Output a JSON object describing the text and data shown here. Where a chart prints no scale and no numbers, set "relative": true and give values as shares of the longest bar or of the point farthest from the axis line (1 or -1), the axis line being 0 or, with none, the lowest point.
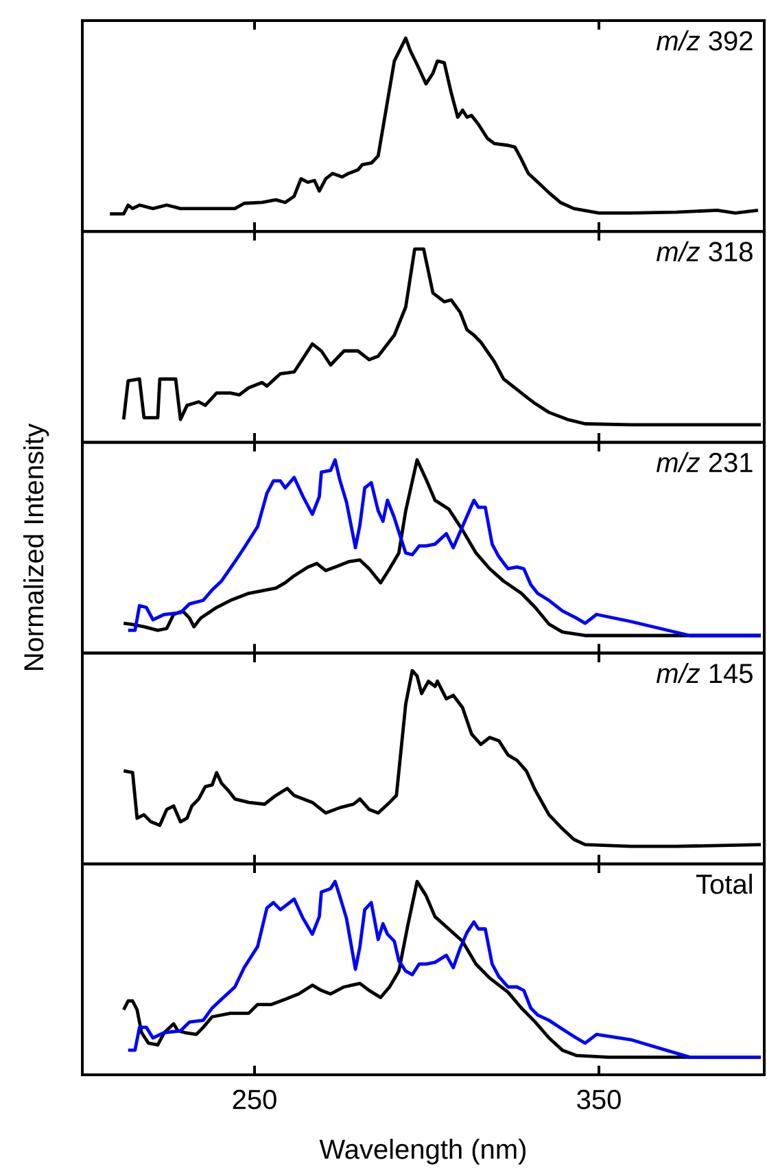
{
  "chart_data": [
    {
      "type": "line",
      "relative": true,
      "xlim": [
        200,
        398
      ],
      "xticks": [
        250,
        350
      ],
      "tick_labels": false,
      "annotations": [
        "*m/z* 392"
      ],
      "series": [
        {
          "color": "#000000",
          "x": [
            208,
            212,
            213.3,
            214.6,
            216.6,
            220.5,
            224.5,
            228.5,
            235.1,
            244.3,
            247,
            252.2,
            256.2,
            258.9,
            261.5,
            263.5,
            265.5,
            267.4,
            268.8,
            270.7,
            272.7,
            275.4,
            277.3,
            280,
            281.3,
            284,
            285.9,
            287.9,
            290.6,
            293.9,
            295.2,
            297.2,
            299.8,
            301.8,
            303.1,
            305.1,
            307.1,
            309,
            310.4,
            311.7,
            313,
            315,
            317.6,
            319.6,
            323.6,
            325.6,
            327.5,
            329.5,
            332.8,
            335.5,
            338.8,
            342.7,
            350,
            359.2,
            372.5,
            384.3,
            389.6,
            396.2
          ],
          "values": [
            0,
            0,
            0.05,
            0.03,
            0.05,
            0.03,
            0.05,
            0.03,
            0.03,
            0.03,
            0.06,
            0.065,
            0.08,
            0.065,
            0.1,
            0.2,
            0.18,
            0.19,
            0.13,
            0.2,
            0.23,
            0.21,
            0.23,
            0.25,
            0.28,
            0.29,
            0.33,
            0.56,
            0.87,
            1,
            0.93,
            0.85,
            0.74,
            0.8,
            0.87,
            0.86,
            0.69,
            0.55,
            0.59,
            0.55,
            0.56,
            0.51,
            0.43,
            0.4,
            0.39,
            0.38,
            0.31,
            0.23,
            0.17,
            0.12,
            0.065,
            0.03,
            0.005,
            0.005,
            0.01,
            0.02,
            0.005,
            0.02
          ]
        }
      ]
    },
    {
      "type": "line",
      "relative": true,
      "xlim": [
        200,
        398
      ],
      "xticks": [
        250,
        350
      ],
      "tick_labels": false,
      "annotations": [
        "*m/z* 318"
      ],
      "series": [
        {
          "color": "#000000",
          "x": [
            212,
            213.3,
            216.6,
            217.9,
            221.9,
            222.5,
            227.1,
            228.5,
            230.4,
            233.8,
            235.7,
            239,
            243,
            245.6,
            248.3,
            252.2,
            253.6,
            257.5,
            261.5,
            263.5,
            266.8,
            269.4,
            272.1,
            276,
            280,
            283.3,
            285.9,
            290.6,
            293.9,
            296.5,
            299.1,
            301.8,
            305.1,
            307.1,
            309.7,
            311.7,
            313.7,
            315.7,
            319.6,
            322.3,
            327.5,
            331.5,
            335.5,
            340.8,
            346,
            359.2,
            397
          ],
          "values": [
            0.03,
            0.25,
            0.26,
            0.04,
            0.04,
            0.26,
            0.26,
            0.03,
            0.11,
            0.13,
            0.11,
            0.18,
            0.18,
            0.17,
            0.21,
            0.24,
            0.22,
            0.29,
            0.3,
            0.36,
            0.46,
            0.42,
            0.34,
            0.42,
            0.42,
            0.37,
            0.39,
            0.51,
            0.67,
            1,
            1,
            0.75,
            0.7,
            0.71,
            0.64,
            0.54,
            0.51,
            0.47,
            0.36,
            0.26,
            0.18,
            0.12,
            0.07,
            0.03,
            0.005,
            0,
            0
          ]
        }
      ]
    },
    {
      "type": "line",
      "relative": true,
      "xlim": [
        200,
        398
      ],
      "xticks": [
        250,
        350
      ],
      "tick_labels": false,
      "ylabel": "Normalized Intensity",
      "annotations": [
        "*m/z* 231"
      ],
      "series": [
        {
          "color": "#000000",
          "x": [
            212,
            214,
            217.9,
            221.9,
            224.5,
            226.5,
            229.1,
            231.1,
            232.4,
            234.4,
            239,
            243,
            248.3,
            253.6,
            256.2,
            258.9,
            261.5,
            265.5,
            268.1,
            270.7,
            273.4,
            277.3,
            280.6,
            283.3,
            286.6,
            289.2,
            291.9,
            293.9,
            297.2,
            299.8,
            302.4,
            306.4,
            310.4,
            314.3,
            318.3,
            322.3,
            327.5,
            331.5,
            335.5,
            339.4,
            346,
            372.5,
            397
          ],
          "values": [
            0.07,
            0.065,
            0.05,
            0.03,
            0.04,
            0.12,
            0.14,
            0.1,
            0.05,
            0.1,
            0.16,
            0.2,
            0.24,
            0.26,
            0.27,
            0.3,
            0.34,
            0.39,
            0.41,
            0.37,
            0.39,
            0.42,
            0.43,
            0.38,
            0.3,
            0.38,
            0.47,
            0.71,
            1,
            0.89,
            0.77,
            0.72,
            0.6,
            0.47,
            0.38,
            0.31,
            0.24,
            0.16,
            0.065,
            0.02,
            0,
            0,
            0
          ]
        },
        {
          "color": "#0000ff",
          "x": [
            213.3,
            215.3,
            216.6,
            218.6,
            220.5,
            223.8,
            228.5,
            231.1,
            235.1,
            237.7,
            240.4,
            244.3,
            247,
            250.9,
            253.6,
            255.5,
            257.5,
            258.9,
            261.5,
            264.1,
            266.8,
            268.8,
            269.4,
            272.1,
            273.4,
            274.7,
            276.7,
            279.3,
            280.6,
            282,
            283.9,
            285.9,
            287.3,
            288.6,
            290.6,
            291.9,
            293.9,
            295.8,
            297.8,
            299.8,
            302.4,
            305.7,
            307.7,
            309.7,
            311.7,
            313.7,
            315,
            317,
            319,
            320.9,
            323.6,
            326.2,
            328.2,
            330.2,
            332.2,
            335.5,
            339.4,
            343.4,
            346,
            349.3,
            359.2,
            376.4,
            397
          ],
          "values": [
            0.03,
            0.03,
            0.17,
            0.16,
            0.09,
            0.12,
            0.13,
            0.18,
            0.2,
            0.26,
            0.31,
            0.42,
            0.5,
            0.62,
            0.81,
            0.88,
            0.88,
            0.84,
            0.9,
            0.79,
            0.69,
            0.79,
            0.93,
            0.94,
            1,
            0.89,
            0.76,
            0.5,
            0.63,
            0.84,
            0.87,
            0.71,
            0.65,
            0.77,
            0.67,
            0.59,
            0.47,
            0.46,
            0.51,
            0.51,
            0.52,
            0.58,
            0.5,
            0.59,
            0.68,
            0.77,
            0.73,
            0.73,
            0.52,
            0.45,
            0.38,
            0.39,
            0.38,
            0.29,
            0.24,
            0.2,
            0.14,
            0.1,
            0.07,
            0.12,
            0.08,
            0,
            0
          ]
        }
      ]
    },
    {
      "type": "line",
      "relative": true,
      "xlim": [
        200,
        398
      ],
      "xticks": [
        250,
        350
      ],
      "tick_labels": false,
      "annotations": [
        "*m/z* 145"
      ],
      "series": [
        {
          "color": "#000000",
          "x": [
            212,
            214.6,
            215.9,
            217.9,
            219.9,
            222.5,
            224.5,
            226.5,
            228.5,
            230.4,
            231.8,
            233.8,
            235.7,
            237.7,
            239,
            240.4,
            242.3,
            244.3,
            248.3,
            252.9,
            256.2,
            259.5,
            261.5,
            264.1,
            266.8,
            270.7,
            274.7,
            278.7,
            280.6,
            283.3,
            285.9,
            289.2,
            291.2,
            293.9,
            295.8,
            297.2,
            298.5,
            300.5,
            302.4,
            303.1,
            305.7,
            307.7,
            310.4,
            313,
            315.7,
            318.3,
            321,
            323.6,
            326.2,
            328.9,
            331.5,
            335.5,
            339.4,
            342.7,
            346,
            359.2,
            372.5,
            397
          ],
          "values": [
            0.43,
            0.42,
            0.16,
            0.18,
            0.14,
            0.12,
            0.21,
            0.23,
            0.14,
            0.16,
            0.23,
            0.27,
            0.34,
            0.35,
            0.42,
            0.36,
            0.32,
            0.27,
            0.25,
            0.24,
            0.29,
            0.33,
            0.29,
            0.27,
            0.25,
            0.19,
            0.22,
            0.24,
            0.27,
            0.21,
            0.19,
            0.25,
            0.29,
            0.81,
            1,
            0.97,
            0.87,
            0.94,
            0.91,
            0.94,
            0.84,
            0.86,
            0.79,
            0.64,
            0.58,
            0.62,
            0.6,
            0.52,
            0.49,
            0.43,
            0.32,
            0.18,
            0.1,
            0.04,
            0.01,
            0,
            0,
            0.01
          ]
        }
      ]
    },
    {
      "type": "line",
      "relative": true,
      "xlim": [
        200,
        398
      ],
      "xticks": [
        250,
        350
      ],
      "tick_labels": "x",
      "xlabel": "Wavelength (nm)",
      "annotations": [
        "Total"
      ],
      "series": [
        {
          "color": "#000000",
          "x": [
            212,
            213.3,
            214.6,
            215.9,
            217.2,
            219.2,
            221.9,
            223.8,
            226.5,
            227.8,
            229.8,
            233.1,
            235.1,
            237.7,
            243,
            248.3,
            250.9,
            254.9,
            258.9,
            262.8,
            266.8,
            269.4,
            272.1,
            276,
            280.6,
            283.3,
            286.6,
            289.2,
            291.9,
            294.5,
            297.2,
            299.8,
            302.4,
            306.4,
            310.4,
            314.3,
            318.3,
            323.6,
            327.5,
            331.5,
            335.5,
            339.4,
            343.4,
            352.6,
            397
          ],
          "values": [
            0.27,
            0.32,
            0.32,
            0.27,
            0.14,
            0.08,
            0.07,
            0.14,
            0.19,
            0.15,
            0.14,
            0.13,
            0.17,
            0.23,
            0.25,
            0.25,
            0.3,
            0.3,
            0.33,
            0.36,
            0.41,
            0.38,
            0.36,
            0.4,
            0.42,
            0.38,
            0.34,
            0.4,
            0.49,
            0.75,
            1,
            0.92,
            0.8,
            0.73,
            0.66,
            0.53,
            0.45,
            0.37,
            0.28,
            0.2,
            0.11,
            0.04,
            0.01,
            0,
            0
          ]
        },
        {
          "color": "#0000ff",
          "x": [
            213.3,
            215.3,
            216.6,
            218.6,
            220.5,
            223.8,
            228.5,
            231.1,
            235.1,
            237.7,
            240.4,
            244.3,
            247,
            250.9,
            253.6,
            255.5,
            257.5,
            258.9,
            261.5,
            264.1,
            266.8,
            268.8,
            269.4,
            272.1,
            273.4,
            274.7,
            276.7,
            279.3,
            280.6,
            282,
            283.9,
            285.9,
            287.3,
            288.6,
            290.6,
            291.9,
            293.9,
            295.8,
            297.8,
            299.8,
            302.4,
            305.7,
            307.7,
            309.7,
            311.7,
            313.7,
            315,
            317,
            319,
            320.9,
            323.6,
            326.2,
            328.2,
            330.2,
            332.2,
            335.5,
            339.4,
            343.4,
            346,
            349.3,
            359.2,
            376.4,
            397
          ],
          "values": [
            0.04,
            0.04,
            0.17,
            0.17,
            0.11,
            0.14,
            0.15,
            0.2,
            0.21,
            0.28,
            0.33,
            0.4,
            0.51,
            0.63,
            0.85,
            0.88,
            0.84,
            0.86,
            0.9,
            0.79,
            0.7,
            0.8,
            0.94,
            0.96,
            1,
            0.92,
            0.79,
            0.5,
            0.63,
            0.84,
            0.88,
            0.67,
            0.76,
            0.7,
            0.66,
            0.55,
            0.49,
            0.47,
            0.53,
            0.53,
            0.54,
            0.58,
            0.51,
            0.62,
            0.71,
            0.77,
            0.73,
            0.73,
            0.53,
            0.46,
            0.4,
            0.4,
            0.38,
            0.28,
            0.24,
            0.21,
            0.16,
            0.11,
            0.08,
            0.13,
            0.1,
            0,
            0
          ]
        }
      ]
    }
  ]
}
